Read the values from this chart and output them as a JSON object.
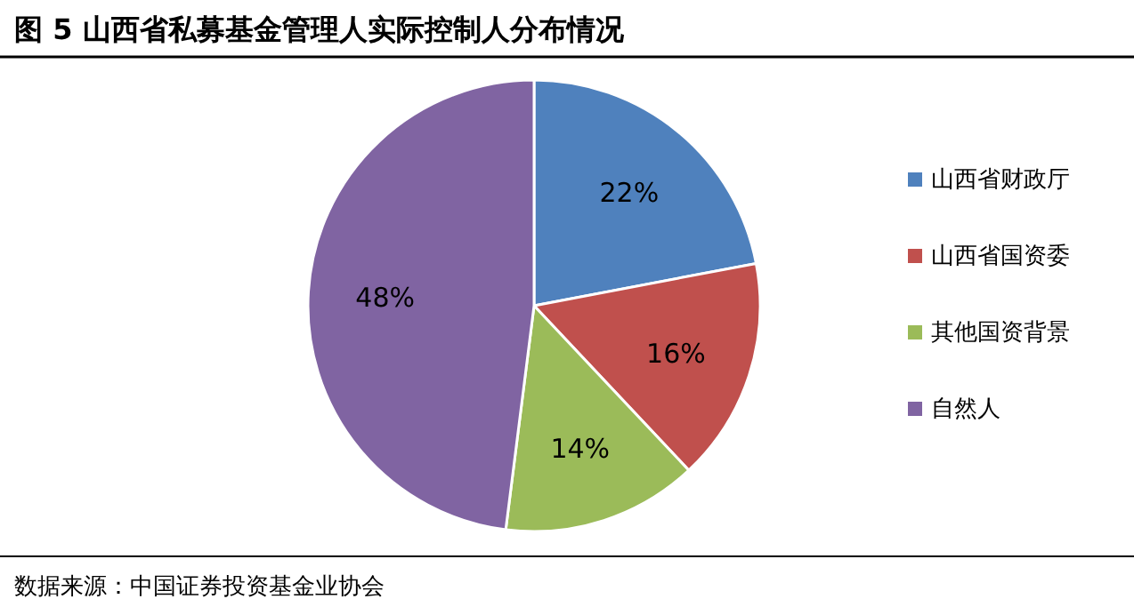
{
  "chart_data": {
    "type": "pie",
    "title": "图 5  山西省私募基金管理人实际控制人分布情况",
    "categories": [
      "山西省财政厅",
      "山西省国资委",
      "其他国资背景",
      "自然人"
    ],
    "values": [
      22,
      16,
      14,
      48
    ],
    "colors": [
      "#4f81bd",
      "#c0504d",
      "#9bbb59",
      "#8064a2"
    ],
    "value_labels": [
      "22%",
      "16%",
      "14%",
      "48%"
    ],
    "legend": "right",
    "annotations": [
      "数据来源：中国证券投资基金业协会"
    ]
  }
}
